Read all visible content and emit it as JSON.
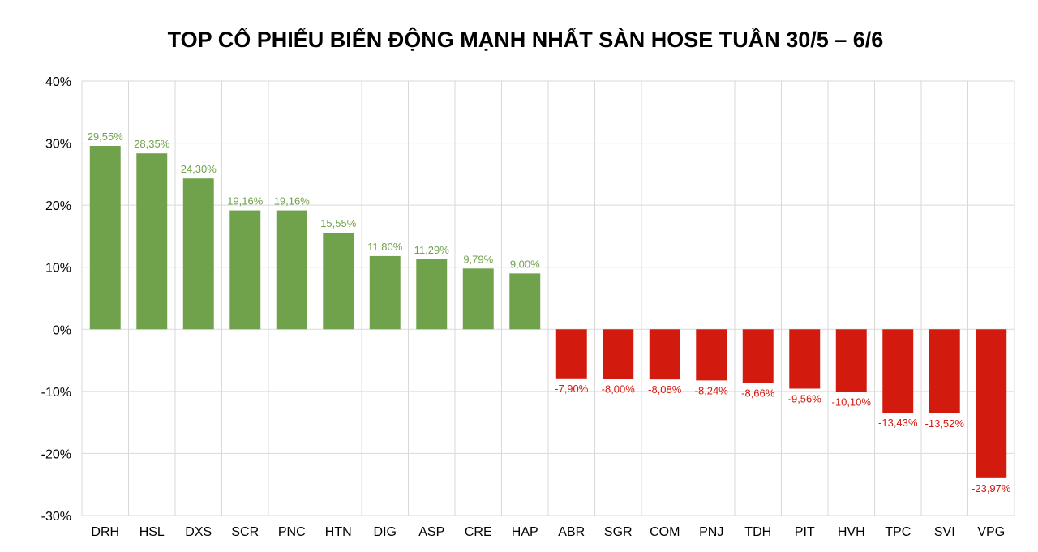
{
  "chart_data": {
    "type": "bar",
    "title": "TOP CỔ PHIẾU BIẾN ĐỘNG MẠNH NHẤT SÀN HOSE TUẦN 30/5 – 6/6",
    "xlabel": "",
    "ylabel": "",
    "ylim": [
      -30,
      40
    ],
    "yticks": [
      40,
      30,
      20,
      10,
      0,
      -10,
      -20,
      -30
    ],
    "ytick_labels": [
      "40%",
      "30%",
      "20%",
      "10%",
      "0%",
      "-10%",
      "-20%",
      "-30%"
    ],
    "grid": true,
    "legend": "none",
    "colors": {
      "positive": "#70a24c",
      "negative": "#d31a0f",
      "grid": "#d9d9d9"
    },
    "categories": [
      "DRH",
      "HSL",
      "DXS",
      "SCR",
      "PNC",
      "HTN",
      "DIG",
      "ASP",
      "CRE",
      "HAP",
      "ABR",
      "SGR",
      "COM",
      "PNJ",
      "TDH",
      "PIT",
      "HVH",
      "TPC",
      "SVI",
      "VPG"
    ],
    "values": [
      29.55,
      28.35,
      24.3,
      19.16,
      19.16,
      15.55,
      11.8,
      11.29,
      9.79,
      9.0,
      -7.9,
      -8.0,
      -8.08,
      -8.24,
      -8.66,
      -9.56,
      -10.1,
      -13.43,
      -13.52,
      -23.97
    ],
    "data_labels": [
      "29,55%",
      "28,35%",
      "24,30%",
      "19,16%",
      "19,16%",
      "15,55%",
      "11,80%",
      "11,29%",
      "9,79%",
      "9,00%",
      "-7,90%",
      "-8,00%",
      "-8,08%",
      "-8,24%",
      "-8,66%",
      "-9,56%",
      "-10,10%",
      "-13,43%",
      "-13,52%",
      "-23,97%"
    ]
  }
}
